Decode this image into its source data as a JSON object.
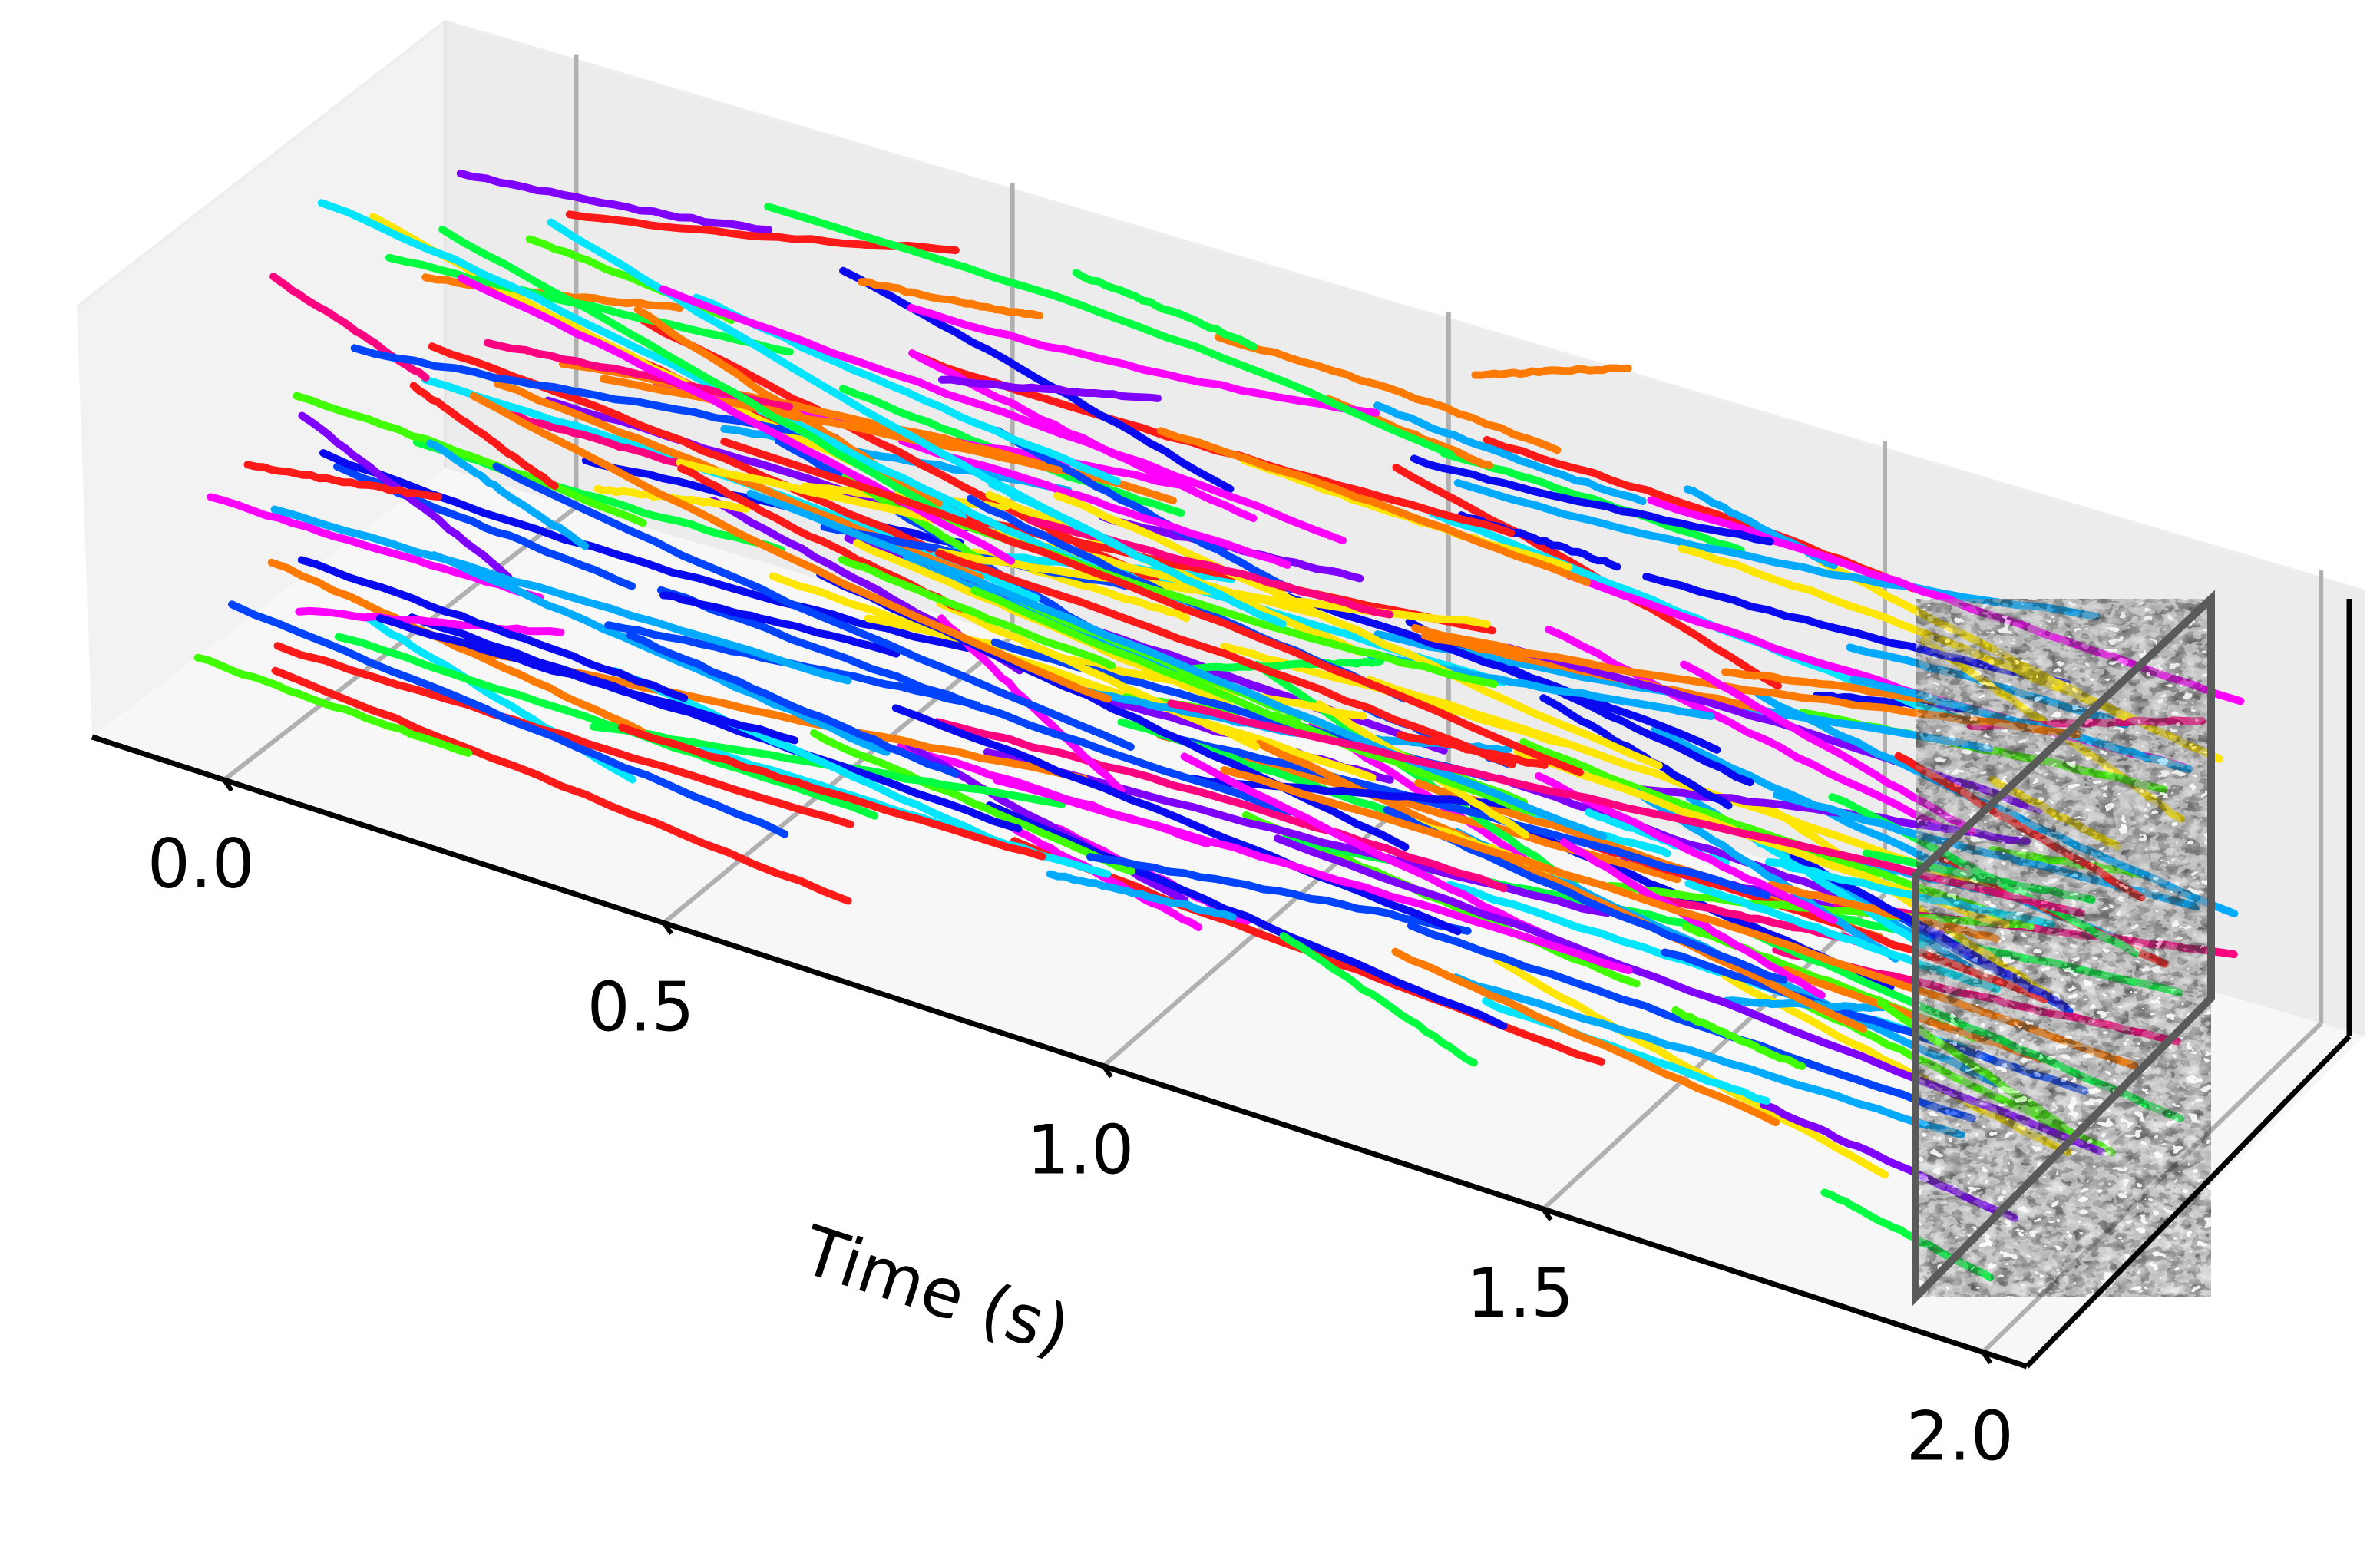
{
  "chart_data": {
    "type": "line",
    "projection": "3d",
    "title": "",
    "xlabel": "Time (s)",
    "ylabel": "",
    "zlabel": "",
    "xlim": [
      -0.15,
      2.05
    ],
    "xticks": [
      "0.0",
      "0.5",
      "1.0",
      "1.5",
      "2.0"
    ],
    "grid": true,
    "legend": "none",
    "end_panel": "grayscale intensity frame at t = 2.0 s",
    "series_colors": [
      "#0a0af0",
      "#ff00ff",
      "#00ff40",
      "#00e5ff",
      "#ff1a1a",
      "#ff7a00",
      "#ffe600",
      "#7f00ff",
      "#00aaff",
      "#ff0080",
      "#40ff00",
      "#0044ff"
    ],
    "tracks": [
      {
        "t": [
          -0.05,
          0.25
        ],
        "y": [
          0.05,
          0.07
        ],
        "z": [
          0.22,
          0.18
        ],
        "color": "#40ff00"
      },
      {
        "t": [
          0.0,
          0.42
        ],
        "y": [
          0.22,
          0.26
        ],
        "z": [
          0.36,
          0.28
        ],
        "color": "#0a0af0"
      },
      {
        "t": [
          0.05,
          0.65
        ],
        "y": [
          0.55,
          0.62
        ],
        "z": [
          0.78,
          0.52
        ],
        "color": "#ff00ff"
      },
      {
        "t": [
          0.0,
          0.55
        ],
        "y": [
          0.62,
          0.66
        ],
        "z": [
          0.82,
          0.58
        ],
        "color": "#00ff40"
      },
      {
        "t": [
          0.1,
          0.75
        ],
        "y": [
          0.68,
          0.72
        ],
        "z": [
          0.92,
          0.62
        ],
        "color": "#00e5ff"
      },
      {
        "t": [
          0.1,
          0.8
        ],
        "y": [
          0.46,
          0.52
        ],
        "z": [
          0.7,
          0.4
        ],
        "color": "#ff7a00"
      },
      {
        "t": [
          0.15,
          0.85
        ],
        "y": [
          0.4,
          0.46
        ],
        "z": [
          0.62,
          0.32
        ],
        "color": "#0044ff"
      },
      {
        "t": [
          0.2,
          0.95
        ],
        "y": [
          0.75,
          0.82
        ],
        "z": [
          0.85,
          0.55
        ],
        "color": "#ff00ff"
      },
      {
        "t": [
          0.3,
          1.05
        ],
        "y": [
          0.8,
          0.88
        ],
        "z": [
          1.0,
          0.75
        ],
        "color": "#00ff40"
      },
      {
        "t": [
          0.35,
          1.3
        ],
        "y": [
          0.55,
          0.62
        ],
        "z": [
          0.62,
          0.45
        ],
        "color": "#ff1a1a"
      },
      {
        "t": [
          0.4,
          1.35
        ],
        "y": [
          0.5,
          0.56
        ],
        "z": [
          0.56,
          0.4
        ],
        "color": "#00aaff"
      },
      {
        "t": [
          0.95,
          1.25
        ],
        "y": [
          0.92,
          0.93
        ],
        "z": [
          0.92,
          0.9
        ],
        "color": "#00aaff"
      },
      {
        "t": [
          1.0,
          1.4
        ],
        "y": [
          0.9,
          0.92
        ],
        "z": [
          0.86,
          0.86
        ],
        "color": "#0a0af0"
      },
      {
        "t": [
          0.9,
          1.9
        ],
        "y": [
          0.45,
          0.55
        ],
        "z": [
          0.5,
          0.5
        ],
        "color": "#ff0080"
      },
      {
        "t": [
          1.0,
          2.0
        ],
        "y": [
          0.35,
          0.45
        ],
        "z": [
          0.45,
          0.3
        ],
        "color": "#ff7a00"
      },
      {
        "t": [
          1.1,
          2.0
        ],
        "y": [
          0.25,
          0.35
        ],
        "z": [
          0.4,
          0.2
        ],
        "color": "#7f00ff"
      },
      {
        "t": [
          0.8,
          1.5
        ],
        "y": [
          0.2,
          0.25
        ],
        "z": [
          0.38,
          0.36
        ],
        "color": "#ff00ff"
      },
      {
        "t": [
          0.9,
          1.1
        ],
        "y": [
          0.1,
          0.12
        ],
        "z": [
          0.3,
          0.32
        ],
        "color": "#00aaff"
      }
    ]
  }
}
